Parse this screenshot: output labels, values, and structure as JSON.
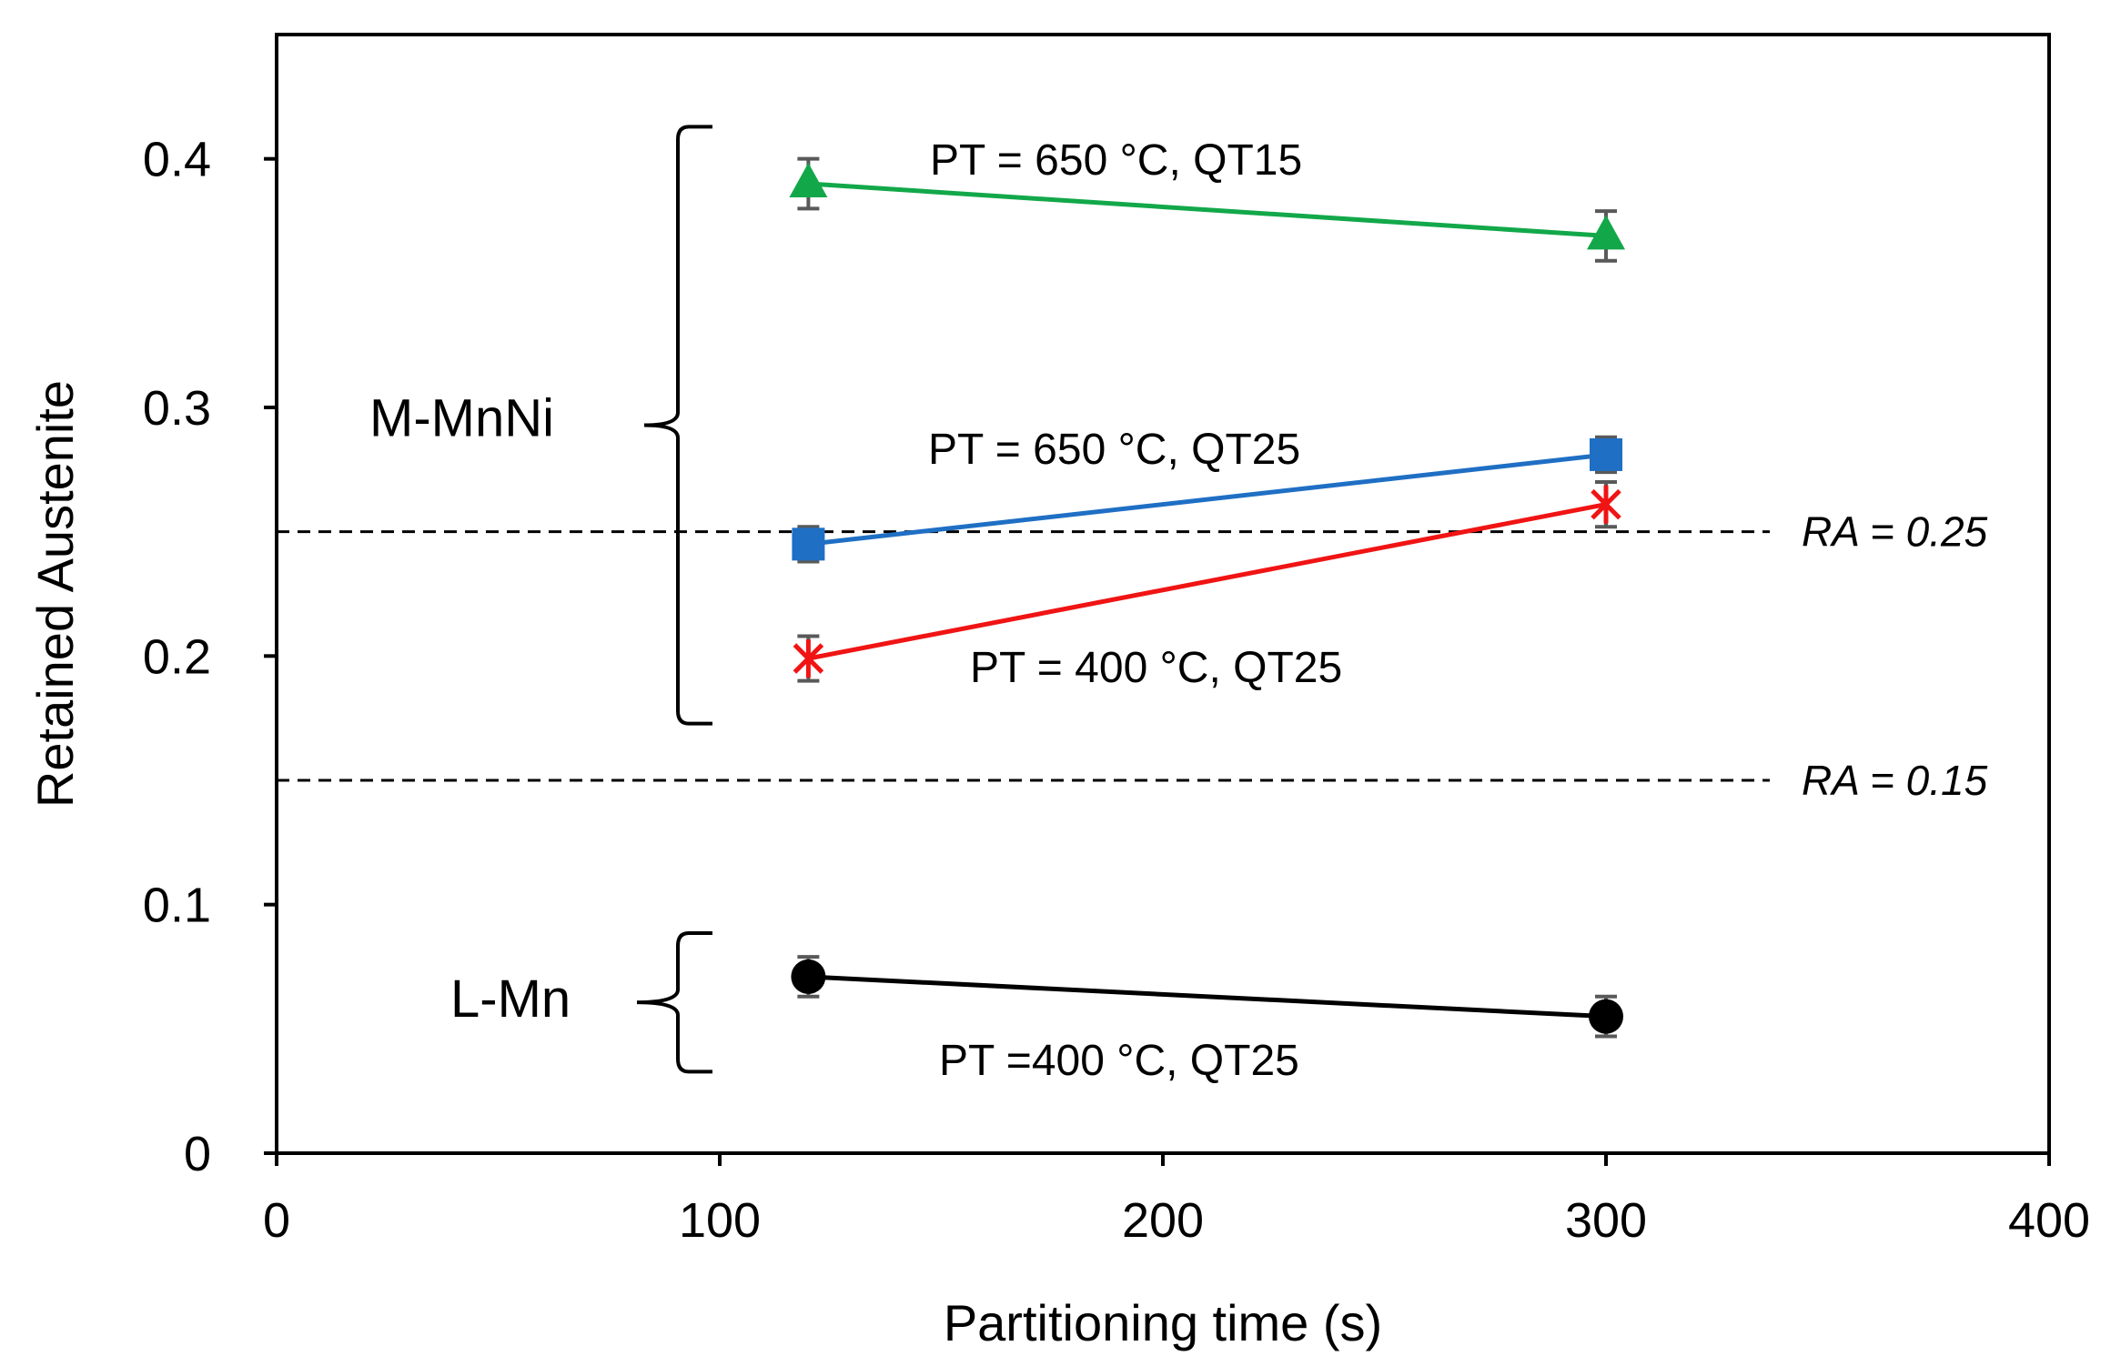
{
  "chart_data": {
    "type": "line",
    "title": "",
    "xlabel": "Partitioning time (s)",
    "ylabel": "Retained Austenite",
    "xlim": [
      0,
      400
    ],
    "ylim": [
      0,
      0.45
    ],
    "xticks": [
      0,
      100,
      200,
      300,
      400
    ],
    "xtick_labels": [
      "0",
      "100",
      "200",
      "300",
      "400"
    ],
    "yticks": [
      0,
      0.1,
      0.2,
      0.3,
      0.4
    ],
    "ytick_labels": [
      "0",
      "0.1",
      "0.2",
      "0.3",
      "0.4"
    ],
    "grid": false,
    "legend": "none",
    "series": [
      {
        "name": "PT = 650 °C, QT15",
        "color": "#12a84a",
        "marker": "triangle",
        "x": [
          120,
          300
        ],
        "values": [
          0.39,
          0.369
        ],
        "error": [
          0.01,
          0.01
        ]
      },
      {
        "name": "PT = 650 °C, QT25",
        "color": "#1f6fc4",
        "marker": "square",
        "x": [
          120,
          300
        ],
        "values": [
          0.245,
          0.281
        ],
        "error": [
          0.007,
          0.007
        ]
      },
      {
        "name": "PT = 400 °C, QT25",
        "color": "#f01414",
        "marker": "star",
        "x": [
          120,
          300
        ],
        "values": [
          0.199,
          0.261
        ],
        "error": [
          0.009,
          0.009
        ]
      },
      {
        "name": "PT =400 °C, QT25",
        "color": "#000000",
        "marker": "circle",
        "x": [
          120,
          300
        ],
        "values": [
          0.071,
          0.055
        ],
        "error": [
          0.008,
          0.008
        ]
      }
    ],
    "reference_lines": [
      {
        "label": "RA = 0.25",
        "y": 0.25,
        "style": "dashed"
      },
      {
        "label": "RA = 0.15",
        "y": 0.15,
        "style": "dashed"
      }
    ],
    "groups": [
      {
        "label": "M-MnNi",
        "y_range": [
          0.175,
          0.41
        ]
      },
      {
        "label": "L-Mn",
        "y_range": [
          0.035,
          0.09
        ]
      }
    ]
  }
}
